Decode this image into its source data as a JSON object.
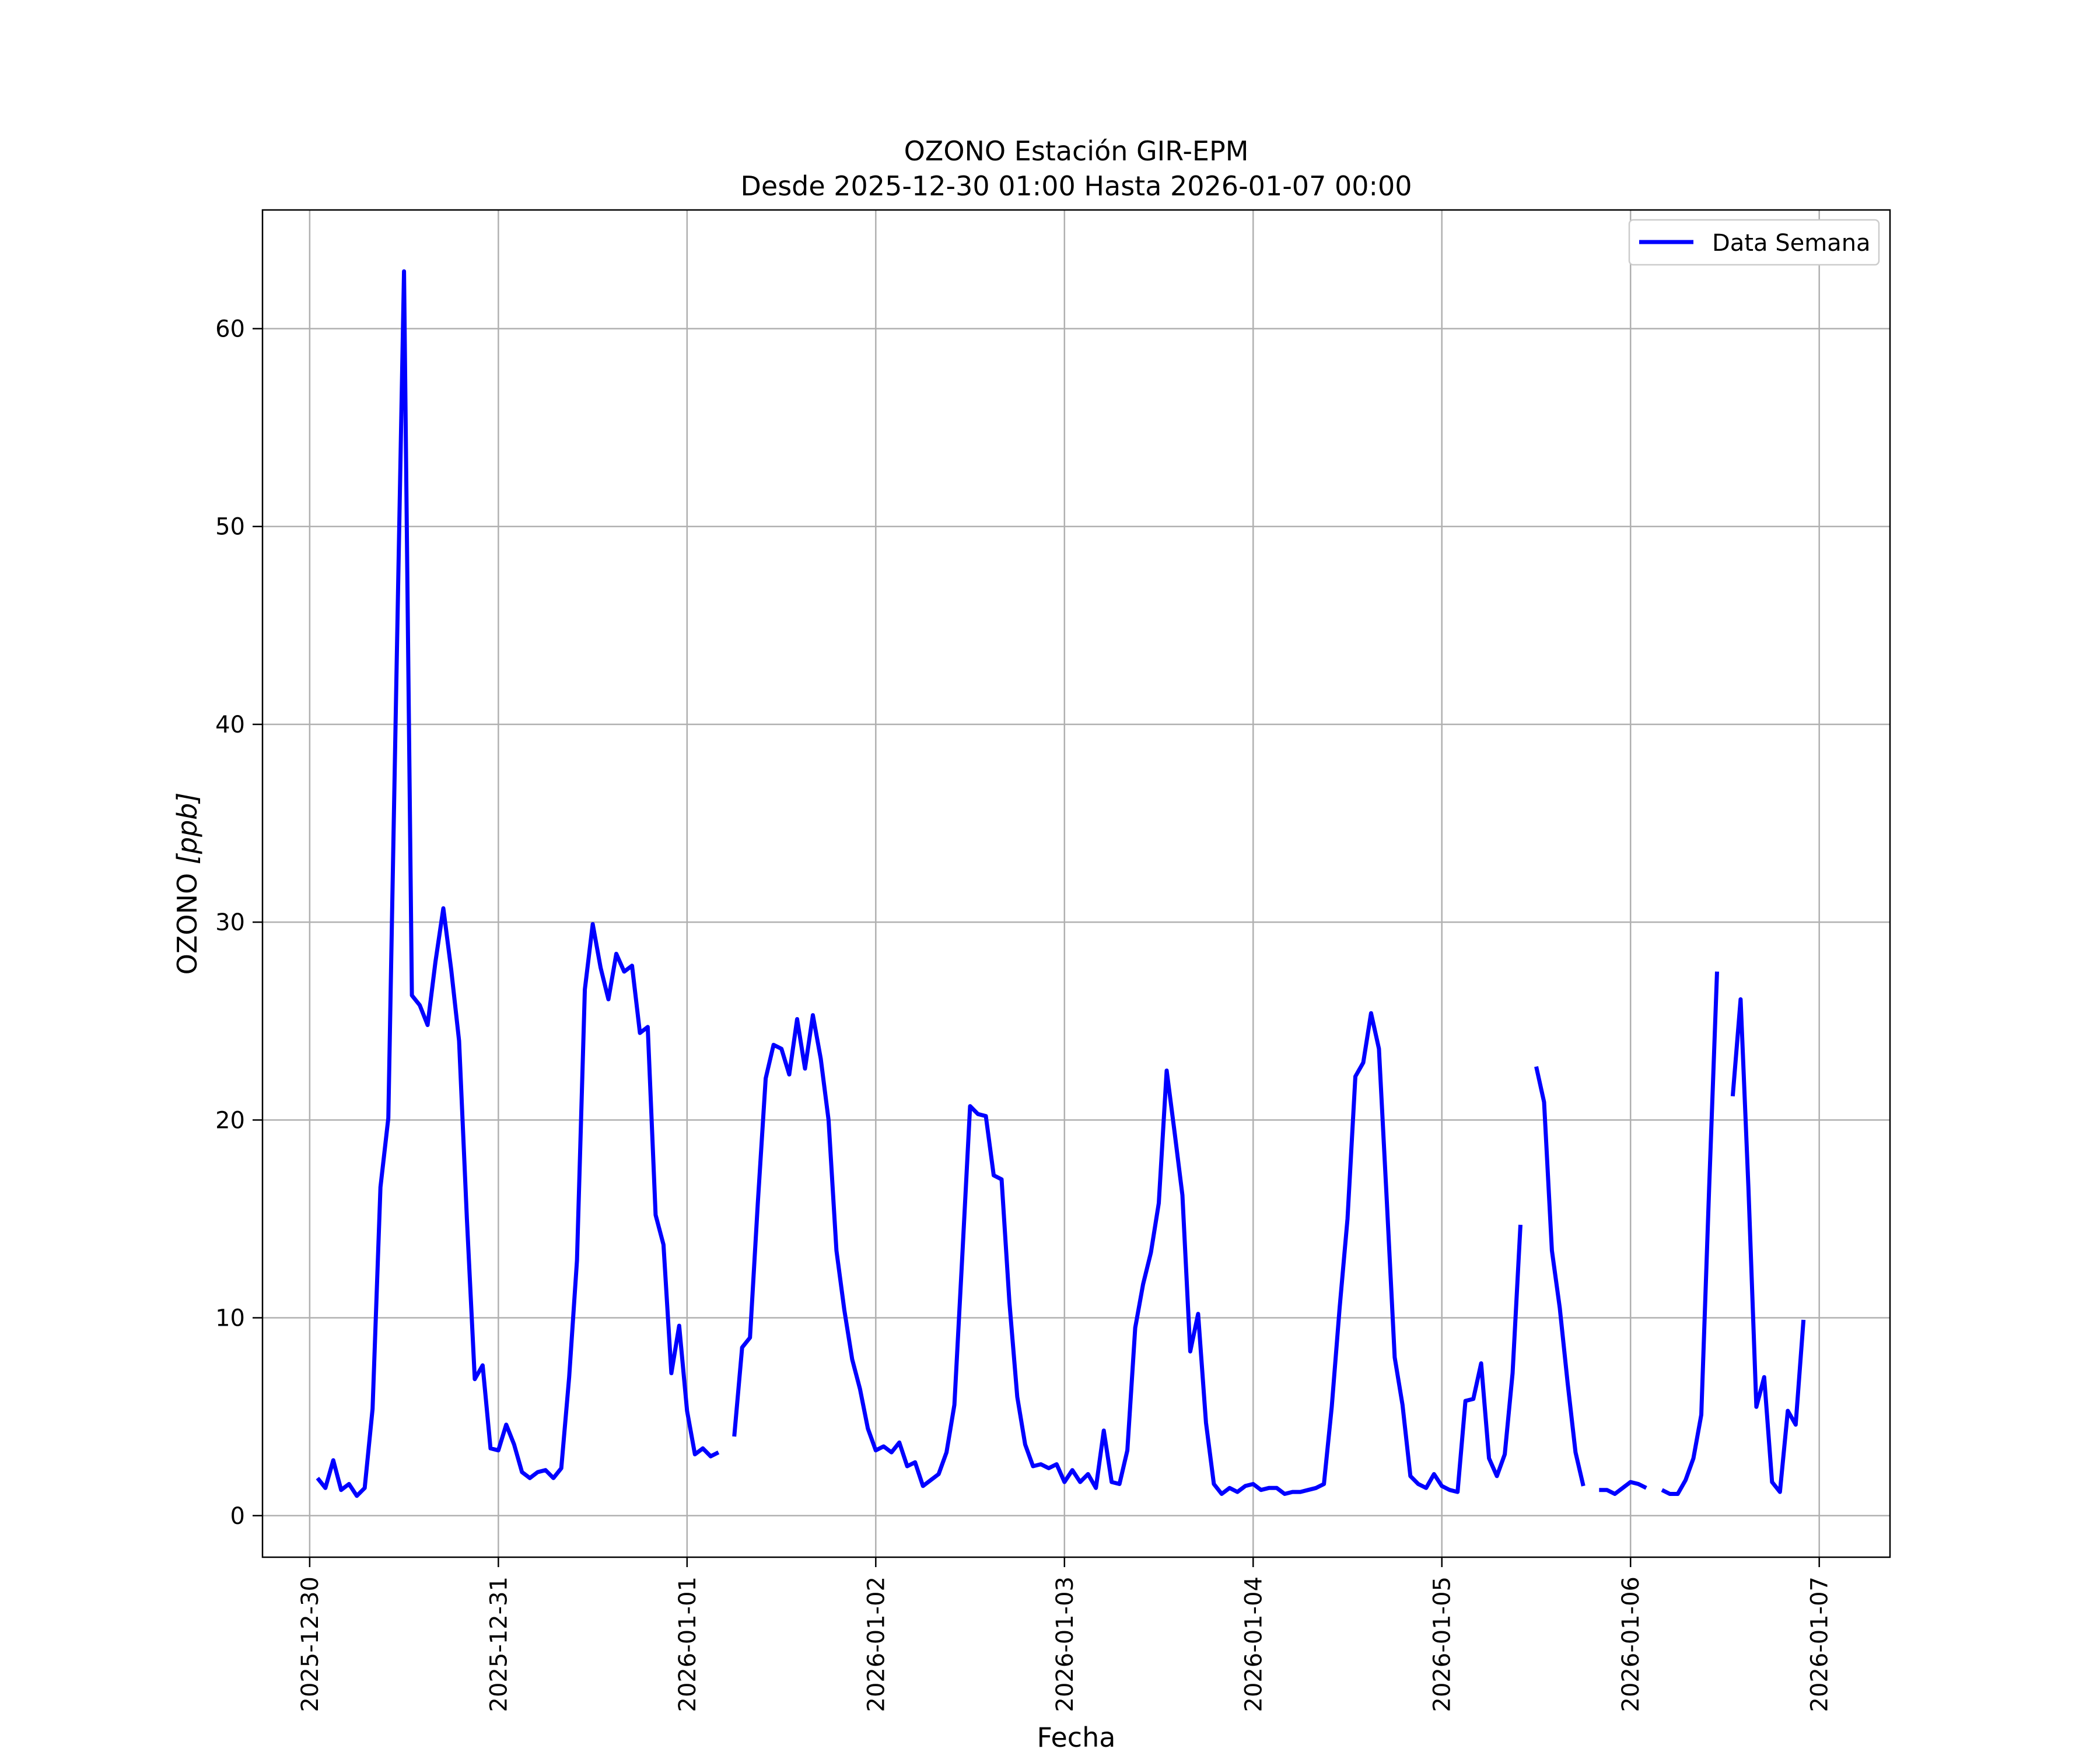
{
  "chart_data": {
    "type": "line",
    "title": "OZONO Estación GIR-EPM",
    "subtitle": "Desde 2025-12-30 01:00 Hasta 2026-01-07 00:00",
    "xlabel": "Fecha",
    "ylabel_text": "OZONO ",
    "ylabel_unit": "[ppb]",
    "x_axis_type": "datetime",
    "xlim": [
      "2025-12-29 18:00",
      "2026-01-07 09:00"
    ],
    "ylim": [
      -2.1,
      66
    ],
    "yticks": [
      0,
      10,
      20,
      30,
      40,
      50,
      60
    ],
    "xticks": [
      "2025-12-30",
      "2025-12-31",
      "2026-01-01",
      "2026-01-02",
      "2026-01-03",
      "2026-01-04",
      "2026-01-05",
      "2026-01-06",
      "2026-01-07"
    ],
    "grid": true,
    "legend_position": "upper right",
    "series": [
      {
        "name": "Data Semana",
        "color": "#0000ff",
        "start": "2025-12-30 01:00",
        "interval_hours": 1,
        "values": [
          1.9,
          1.4,
          2.8,
          1.3,
          1.6,
          1.0,
          1.4,
          5.4,
          16.6,
          20.1,
          41.6,
          62.9,
          26.3,
          25.8,
          24.8,
          28.0,
          30.7,
          27.6,
          24.0,
          15.0,
          6.9,
          7.6,
          3.4,
          3.3,
          4.6,
          3.6,
          2.2,
          1.9,
          2.2,
          2.3,
          1.9,
          2.4,
          7.0,
          12.9,
          26.6,
          29.9,
          27.7,
          26.1,
          28.4,
          27.5,
          27.8,
          24.4,
          24.7,
          15.2,
          13.7,
          7.2,
          9.6,
          5.3,
          3.1,
          3.4,
          3.0,
          3.2,
          null,
          4.0,
          8.5,
          9.0,
          15.8,
          22.1,
          23.8,
          23.6,
          22.3,
          25.1,
          22.6,
          25.3,
          23.1,
          20.0,
          13.4,
          10.4,
          7.9,
          6.4,
          4.4,
          3.3,
          3.5,
          3.2,
          3.7,
          2.5,
          2.7,
          1.5,
          1.8,
          2.1,
          3.2,
          5.6,
          13.1,
          20.7,
          20.3,
          20.2,
          17.2,
          17.0,
          10.8,
          6.0,
          3.6,
          2.5,
          2.6,
          2.4,
          2.6,
          1.7,
          2.3,
          1.7,
          2.1,
          1.4,
          4.3,
          1.7,
          1.6,
          3.3,
          9.5,
          11.7,
          13.3,
          15.8,
          22.5,
          19.4,
          16.2,
          8.3,
          10.2,
          4.7,
          1.6,
          1.1,
          1.4,
          1.2,
          1.5,
          1.6,
          1.3,
          1.4,
          1.4,
          1.1,
          1.2,
          1.2,
          1.3,
          1.4,
          1.6,
          5.5,
          10.5,
          15.0,
          22.2,
          22.9,
          25.4,
          23.6,
          15.9,
          8.0,
          5.6,
          2.0,
          1.6,
          1.4,
          2.1,
          1.5,
          1.3,
          1.2,
          5.8,
          5.9,
          7.7,
          2.9,
          2.0,
          3.1,
          7.2,
          14.7,
          null,
          22.7,
          20.9,
          13.4,
          10.5,
          6.7,
          3.2,
          1.5,
          null,
          1.3,
          1.3,
          1.1,
          1.4,
          1.7,
          1.6,
          1.4,
          null,
          1.3,
          1.1,
          1.1,
          1.8,
          2.9,
          5.1,
          16.6,
          27.5,
          null,
          21.2,
          26.1,
          16.5,
          5.5,
          7.0,
          1.7,
          1.2,
          5.3,
          4.6,
          9.9
        ]
      }
    ]
  }
}
